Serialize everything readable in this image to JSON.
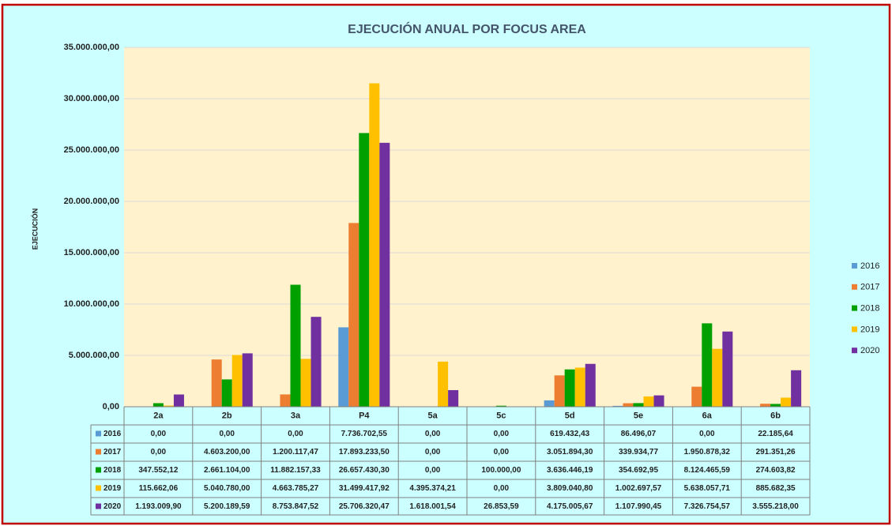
{
  "chart_data": {
    "type": "bar",
    "title": "EJECUCIÓN ANUAL POR FOCUS AREA",
    "y_label": "EJECUCIÓN",
    "categories": [
      "2a",
      "2b",
      "3a",
      "P4",
      "5a",
      "5c",
      "5d",
      "5e",
      "6a",
      "6b"
    ],
    "series": [
      {
        "name": "2016",
        "color": "#5b9bd5",
        "values": [
          0,
          0,
          0,
          7736702.55,
          0,
          0,
          619432.43,
          86496.07,
          0,
          22185.64
        ],
        "value_labels": [
          "0,00",
          "0,00",
          "0,00",
          "7.736.702,55",
          "0,00",
          "0,00",
          "619.432,43",
          "86.496,07",
          "0,00",
          "22.185,64"
        ]
      },
      {
        "name": "2017",
        "color": "#ed7d31",
        "values": [
          0,
          4603200,
          1200117.47,
          17893233.5,
          0,
          0,
          3051894.3,
          339934.77,
          1950878.32,
          291351.26
        ],
        "value_labels": [
          "0,00",
          "4.603.200,00",
          "1.200.117,47",
          "17.893.233,50",
          "0,00",
          "0,00",
          "3.051.894,30",
          "339.934,77",
          "1.950.878,32",
          "291.351,26"
        ]
      },
      {
        "name": "2018",
        "color": "#00a000",
        "values": [
          347552.12,
          2661104,
          11882157.33,
          26657430.3,
          0,
          100000,
          3636446.19,
          354692.95,
          8124465.59,
          274603.82
        ],
        "value_labels": [
          "347.552,12",
          "2.661.104,00",
          "11.882.157,33",
          "26.657.430,30",
          "0,00",
          "100.000,00",
          "3.636.446,19",
          "354.692,95",
          "8.124.465,59",
          "274.603,82"
        ]
      },
      {
        "name": "2019",
        "color": "#ffc000",
        "values": [
          115662.06,
          5040780,
          4663785.27,
          31499417.92,
          4395374.21,
          0,
          3809040.8,
          1002697.57,
          5638057.71,
          885682.35
        ],
        "value_labels": [
          "115.662,06",
          "5.040.780,00",
          "4.663.785,27",
          "31.499.417,92",
          "4.395.374,21",
          "0,00",
          "3.809.040,80",
          "1.002.697,57",
          "5.638.057,71",
          "885.682,35"
        ]
      },
      {
        "name": "2020",
        "color": "#7030a0",
        "values": [
          1193009.9,
          5200189.59,
          8753847.52,
          25706320.47,
          1618001.54,
          26853.59,
          4175005.67,
          1107990.45,
          7326754.57,
          3555218
        ],
        "value_labels": [
          "1.193.009,90",
          "5.200.189,59",
          "8.753.847,52",
          "25.706.320,47",
          "1.618.001,54",
          "26.853,59",
          "4.175.005,67",
          "1.107.990,45",
          "7.326.754,57",
          "3.555.218,00"
        ]
      }
    ],
    "ylim": [
      0,
      35000000
    ],
    "yticks": [
      {
        "value": 0,
        "label": "0,00"
      },
      {
        "value": 5000000,
        "label": "5.000.000,00"
      },
      {
        "value": 10000000,
        "label": "10.000.000,00"
      },
      {
        "value": 15000000,
        "label": "15.000.000,00"
      },
      {
        "value": 20000000,
        "label": "20.000.000,00"
      },
      {
        "value": 25000000,
        "label": "25.000.000,00"
      },
      {
        "value": 30000000,
        "label": "30.000.000,00"
      },
      {
        "value": 35000000,
        "label": "35.000.000,00"
      }
    ],
    "grid": true,
    "legend": "right"
  }
}
